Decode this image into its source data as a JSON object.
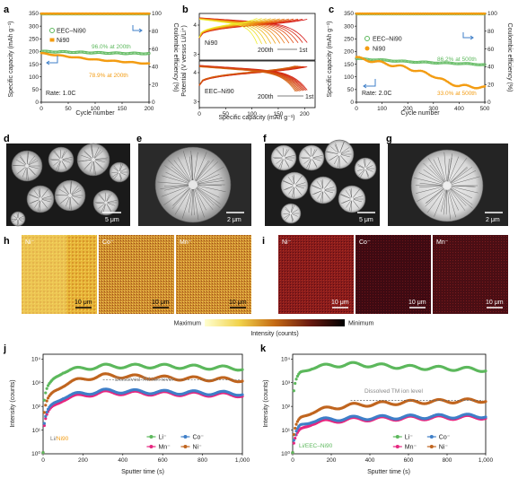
{
  "panels": {
    "a": {
      "label": "a",
      "legend": [
        "EEC–Ni90",
        "Ni90"
      ],
      "ann_green": "96.0% at 200th",
      "ann_orange": "78.9% at 200th",
      "rate": "Rate: 1.0C",
      "xlabel": "Cycle number",
      "ylabel": "Specific capacity (mAh g⁻¹)",
      "y2label": "Coulombic efficiency (%)",
      "xticks": [
        "0",
        "50",
        "100",
        "150",
        "200"
      ],
      "yticks": [
        "0",
        "50",
        "100",
        "150",
        "200",
        "250",
        "300",
        "350"
      ],
      "y2ticks": [
        "0",
        "20",
        "40",
        "60",
        "80",
        "100"
      ]
    },
    "b": {
      "label": "b",
      "top": "Ni90",
      "bottom": "EEC–Ni90",
      "cyc_last": "200th",
      "cyc_first": "1st",
      "xlabel": "Specific capacity (mAh g⁻¹)",
      "ylabel": "Potential (V versus Li/Li⁺)",
      "xticks": [
        "0",
        "50",
        "100",
        "150",
        "200"
      ],
      "yticks": [
        "3",
        "4"
      ]
    },
    "c": {
      "label": "c",
      "legend": [
        "EEC–Ni90",
        "Ni90"
      ],
      "ann_green": "86.2% at 500th",
      "ann_orange": "33.0% at 500th",
      "rate": "Rate: 2.0C",
      "xlabel": "Cycle number",
      "ylabel": "Specific capacity (mAh g⁻¹)",
      "y2label": "Coulombic efficiency (%)",
      "xticks": [
        "0",
        "100",
        "200",
        "300",
        "400",
        "500"
      ],
      "yticks": [
        "0",
        "50",
        "100",
        "150",
        "200",
        "250",
        "300",
        "350"
      ],
      "y2ticks": [
        "0",
        "20",
        "40",
        "60",
        "80",
        "100"
      ]
    },
    "d": {
      "label": "d",
      "scale": "5 μm"
    },
    "e": {
      "label": "e",
      "scale": "2 μm"
    },
    "f": {
      "label": "f",
      "scale": "5 μm"
    },
    "g": {
      "label": "g",
      "scale": "2 μm"
    },
    "h": {
      "label": "h",
      "maps": [
        "Ni⁻",
        "Co⁻",
        "Mn⁻"
      ],
      "scale": "10 μm"
    },
    "i": {
      "label": "i",
      "maps": [
        "Ni⁻",
        "Co⁻",
        "Mn⁻"
      ],
      "scale": "10 μm"
    },
    "colorbar": {
      "max": "Maximum",
      "min": "Minimum",
      "title": "Intensity (counts)"
    },
    "j": {
      "label": "j",
      "dissolved": "Dissolved TM ion level",
      "sample_a": "Li/",
      "sample_b": "Ni90",
      "xlabel": "Sputter time (s)",
      "ylabel": "Intensity (counts)",
      "legend": [
        "Li⁻",
        "Co⁻",
        "Mn⁻",
        "Ni⁻"
      ],
      "xticks": [
        "0",
        "200",
        "400",
        "600",
        "800",
        "1,000"
      ],
      "yticks": [
        "10⁰",
        "10¹",
        "10²",
        "10³",
        "10⁴"
      ]
    },
    "k": {
      "label": "k",
      "dissolved": "Dissolved TM ion level",
      "sample": "Li/EEC–Ni90",
      "xlabel": "Sputter time (s)",
      "ylabel": "Intensity (counts)",
      "legend": [
        "Li⁻",
        "Co⁻",
        "Mn⁻",
        "Ni⁻"
      ],
      "xticks": [
        "0",
        "200",
        "400",
        "600",
        "800",
        "1,000"
      ],
      "yticks": [
        "10⁰",
        "10¹",
        "10²",
        "10³",
        "10⁴"
      ]
    }
  },
  "colors": {
    "green": "#5cb85c",
    "orange": "#f39c12",
    "blue": "#3f7fc8",
    "pink": "#e6267f",
    "brown": "#c0651f",
    "arrow": "#3f7fc8"
  },
  "chart_data": [
    {
      "type": "line",
      "panel": "a",
      "x_range": [
        0,
        200
      ],
      "ylim": [
        0,
        350
      ],
      "y2lim": [
        0,
        100
      ],
      "series": [
        {
          "name": "EEC–Ni90",
          "capacity": [
            [
              0,
              200
            ],
            [
              50,
              198
            ],
            [
              100,
              195
            ],
            [
              150,
              193
            ],
            [
              200,
              192
            ]
          ],
          "ce": 99.5
        },
        {
          "name": "Ni90",
          "capacity": [
            [
              0,
              193
            ],
            [
              50,
              180
            ],
            [
              100,
              168
            ],
            [
              150,
              160
            ],
            [
              200,
              152
            ]
          ],
          "ce": 99.5
        }
      ]
    },
    {
      "type": "line",
      "panel": "c",
      "x_range": [
        0,
        500
      ],
      "ylim": [
        0,
        350
      ],
      "y2lim": [
        0,
        100
      ],
      "series": [
        {
          "name": "EEC–Ni90",
          "capacity": [
            [
              0,
              172
            ],
            [
              100,
              166
            ],
            [
              200,
              160
            ],
            [
              300,
              156
            ],
            [
              400,
              153
            ],
            [
              500,
              148
            ]
          ],
          "ce": 99.5
        },
        {
          "name": "Ni90",
          "capacity": [
            [
              0,
              175
            ],
            [
              100,
              155
            ],
            [
              200,
              135
            ],
            [
              300,
              105
            ],
            [
              350,
              80
            ],
            [
              400,
              65
            ],
            [
              500,
              58
            ]
          ],
          "ce": 99.5
        }
      ]
    },
    {
      "type": "line",
      "panel": "j",
      "x_range": [
        0,
        1000
      ],
      "yscale": "log",
      "ylim": [
        1,
        10000
      ],
      "series": [
        {
          "name": "Li⁻",
          "values": [
            [
              0,
              1
            ],
            [
              40,
              1000
            ],
            [
              100,
              3000
            ],
            [
              300,
              5000
            ],
            [
              600,
              5000
            ],
            [
              1000,
              4000
            ]
          ]
        },
        {
          "name": "Ni⁻",
          "values": [
            [
              0,
              1
            ],
            [
              40,
              300
            ],
            [
              100,
              800
            ],
            [
              300,
              2000
            ],
            [
              600,
              1600
            ],
            [
              1000,
              1300
            ]
          ]
        },
        {
          "name": "Co⁻",
          "values": [
            [
              0,
              1
            ],
            [
              40,
              100
            ],
            [
              100,
              250
            ],
            [
              300,
              450
            ],
            [
              600,
              400
            ],
            [
              1000,
              350
            ]
          ]
        },
        {
          "name": "Mn⁻",
          "values": [
            [
              0,
              1
            ],
            [
              40,
              80
            ],
            [
              100,
              200
            ],
            [
              300,
              380
            ],
            [
              600,
              350
            ],
            [
              1000,
              300
            ]
          ]
        }
      ],
      "dissolved_level": 1300
    },
    {
      "type": "line",
      "panel": "k",
      "x_range": [
        0,
        1000
      ],
      "yscale": "log",
      "ylim": [
        1,
        10000
      ],
      "series": [
        {
          "name": "Li⁻",
          "values": [
            [
              0,
              1
            ],
            [
              40,
              2500
            ],
            [
              100,
              4500
            ],
            [
              300,
              6000
            ],
            [
              600,
              4500
            ],
            [
              1000,
              3500
            ]
          ]
        },
        {
          "name": "Ni⁻",
          "values": [
            [
              0,
              1
            ],
            [
              40,
              30
            ],
            [
              100,
              60
            ],
            [
              300,
              110
            ],
            [
              600,
              150
            ],
            [
              1000,
              180
            ]
          ]
        },
        {
          "name": "Co⁻",
          "values": [
            [
              0,
              1
            ],
            [
              40,
              15
            ],
            [
              100,
              25
            ],
            [
              300,
              32
            ],
            [
              600,
              36
            ],
            [
              1000,
              40
            ]
          ]
        },
        {
          "name": "Mn⁻",
          "values": [
            [
              0,
              1
            ],
            [
              40,
              10
            ],
            [
              100,
              20
            ],
            [
              300,
              28
            ],
            [
              600,
              32
            ],
            [
              1000,
              35
            ]
          ]
        }
      ],
      "dissolved_level": 180
    }
  ]
}
